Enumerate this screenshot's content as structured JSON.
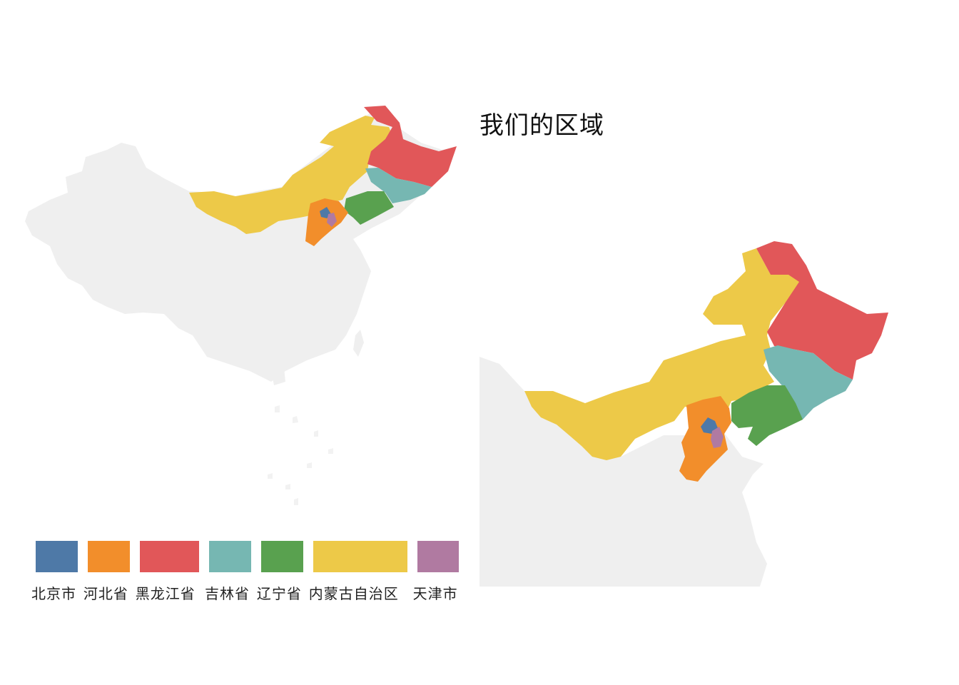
{
  "title": "我们的区域",
  "colors": {
    "background_land": "#efefef",
    "beijing": "#4e79a7",
    "hebei": "#f28e2b",
    "heilongjiang": "#e15759",
    "jilin": "#76b7b2",
    "liaoning": "#59a14f",
    "neimenggu": "#edc948",
    "tianjin": "#b07aa1"
  },
  "legend": [
    {
      "label": "北京市",
      "color": "#4e79a7"
    },
    {
      "label": "河北省",
      "color": "#f28e2b"
    },
    {
      "label": "黑龙江省",
      "color": "#e15759"
    },
    {
      "label": "吉林省",
      "color": "#76b7b2"
    },
    {
      "label": "辽宁省",
      "color": "#59a14f"
    },
    {
      "label": "内蒙古自治区",
      "color": "#edc948"
    },
    {
      "label": "天津市",
      "color": "#b07aa1"
    }
  ]
}
